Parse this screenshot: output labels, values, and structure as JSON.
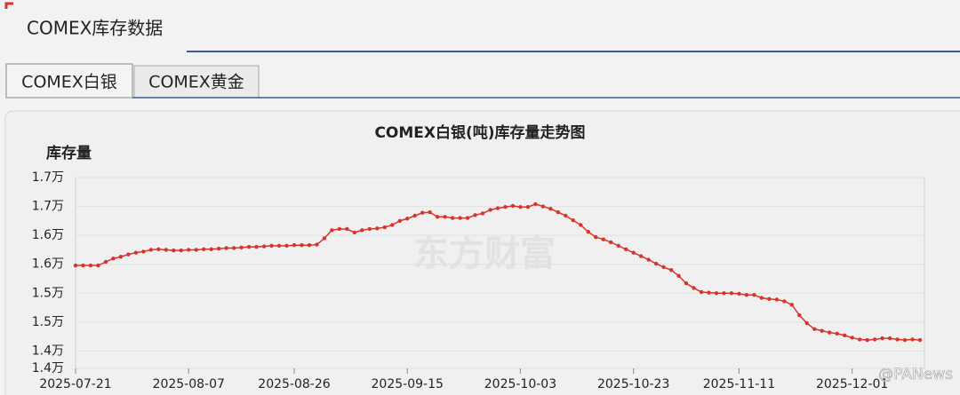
{
  "header": {
    "title": "COMEX库存数据"
  },
  "tabs": [
    "COMEX白银",
    "COMEX黄金"
  ],
  "watermarks": [
    "东方财富",
    "@PANews"
  ],
  "chart_data": {
    "type": "line",
    "title": "COMEX白银(吨)库存量走势图",
    "y_label": "库存量",
    "color": "#d9342b",
    "grid": true,
    "ylim": [
      14200,
      17500
    ],
    "yticks": [
      {
        "value": 14200,
        "label": "1.4万"
      },
      {
        "value": 14500,
        "label": "1.4万"
      },
      {
        "value": 15000,
        "label": "1.5万"
      },
      {
        "value": 15500,
        "label": "1.5万"
      },
      {
        "value": 16000,
        "label": "1.6万"
      },
      {
        "value": 16500,
        "label": "1.6万"
      },
      {
        "value": 17000,
        "label": "1.7万"
      },
      {
        "value": 17500,
        "label": "1.7万"
      }
    ],
    "categories": [
      "2025-07-21",
      null,
      null,
      null,
      null,
      null,
      null,
      null,
      null,
      null,
      null,
      null,
      null,
      null,
      null,
      "2025-08-07",
      null,
      null,
      null,
      null,
      null,
      null,
      null,
      null,
      null,
      null,
      null,
      null,
      null,
      "2025-08-26",
      null,
      null,
      null,
      null,
      null,
      null,
      null,
      null,
      null,
      null,
      null,
      null,
      null,
      null,
      "2025-09-15",
      null,
      null,
      null,
      null,
      null,
      null,
      null,
      null,
      null,
      null,
      null,
      null,
      null,
      null,
      "2025-10-03",
      null,
      null,
      null,
      null,
      null,
      null,
      null,
      null,
      null,
      null,
      null,
      null,
      null,
      null,
      "2025-10-23",
      null,
      null,
      null,
      null,
      null,
      null,
      null,
      null,
      null,
      null,
      null,
      null,
      null,
      "2025-11-11",
      null,
      null,
      null,
      null,
      null,
      null,
      null,
      null,
      null,
      null,
      null,
      null,
      null,
      null,
      "2025-12-01",
      null,
      null,
      null,
      null,
      null,
      null,
      null,
      null,
      null
    ],
    "values": [
      15980,
      15980,
      15980,
      15980,
      16040,
      16100,
      16130,
      16170,
      16200,
      16220,
      16250,
      16260,
      16250,
      16240,
      16240,
      16250,
      16250,
      16260,
      16260,
      16270,
      16280,
      16280,
      16290,
      16300,
      16300,
      16310,
      16320,
      16320,
      16320,
      16330,
      16330,
      16330,
      16340,
      16450,
      16590,
      16610,
      16610,
      16550,
      16590,
      16610,
      16620,
      16640,
      16680,
      16750,
      16790,
      16840,
      16890,
      16900,
      16820,
      16820,
      16800,
      16800,
      16800,
      16850,
      16880,
      16940,
      16970,
      16990,
      17010,
      16990,
      16990,
      17040,
      17000,
      16960,
      16900,
      16840,
      16760,
      16680,
      16560,
      16470,
      16430,
      16380,
      16320,
      16260,
      16200,
      16140,
      16080,
      16010,
      15950,
      15900,
      15800,
      15670,
      15590,
      15520,
      15510,
      15500,
      15500,
      15500,
      15490,
      15470,
      15470,
      15420,
      15400,
      15390,
      15360,
      15300,
      15120,
      14980,
      14880,
      14850,
      14820,
      14800,
      14770,
      14730,
      14700,
      14690,
      14700,
      14720,
      14720,
      14700,
      14690,
      14700,
      14690
    ]
  }
}
